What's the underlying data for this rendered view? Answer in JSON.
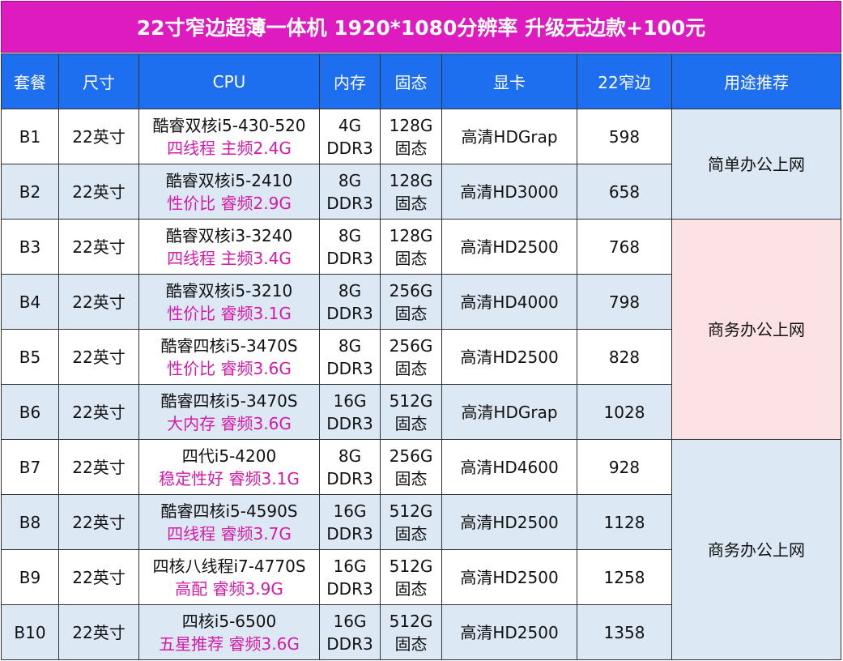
{
  "title": "22寸窄边超薄一体机  1920*1080分辨率 升级无边款+100元",
  "headers": [
    "套餐",
    "尺寸",
    "CPU",
    "内存",
    "固态",
    "显卡",
    "22窄边",
    "用途推荐"
  ],
  "rows": [
    {
      "pkg": "B1",
      "size": "22英寸",
      "cpu1": "酷睿双核i5-430-520",
      "cpu2": "四线程 主频2.4G",
      "mem1": "4G",
      "mem2": "DDR3",
      "ssd1": "128G",
      "ssd2": "固态",
      "gpu": "高清HDGrap",
      "price": "598"
    },
    {
      "pkg": "B2",
      "size": "22英寸",
      "cpu1": "酷睿双核i5-2410",
      "cpu2": "性价比 睿频2.9G",
      "mem1": "8G",
      "mem2": "DDR3",
      "ssd1": "128G",
      "ssd2": "固态",
      "gpu": "高清HD3000",
      "price": "658"
    },
    {
      "pkg": "B3",
      "size": "22英寸",
      "cpu1": "酷睿双核i3-3240",
      "cpu2": "四线程 主频3.4G",
      "mem1": "8G",
      "mem2": "DDR3",
      "ssd1": "128G",
      "ssd2": "固态",
      "gpu": "高清HD2500",
      "price": "768"
    },
    {
      "pkg": "B4",
      "size": "22英寸",
      "cpu1": "酷睿双核i5-3210",
      "cpu2": "性价比 睿频3.1G",
      "mem1": "8G",
      "mem2": "DDR3",
      "ssd1": "256G",
      "ssd2": "固态",
      "gpu": "高清HD4000",
      "price": "798"
    },
    {
      "pkg": "B5",
      "size": "22英寸",
      "cpu1": "酷睿四核i5-3470S",
      "cpu2": "性价比 睿频3.6G",
      "mem1": "8G",
      "mem2": "DDR3",
      "ssd1": "256G",
      "ssd2": "固态",
      "gpu": "高清HD2500",
      "price": "828"
    },
    {
      "pkg": "B6",
      "size": "22英寸",
      "cpu1": "酷睿四核i5-3470S",
      "cpu2": "大内存 睿频3.6G",
      "mem1": "16G",
      "mem2": "DDR3",
      "ssd1": "512G",
      "ssd2": "固态",
      "gpu": "高清HDGrap",
      "price": "1028"
    },
    {
      "pkg": "B7",
      "size": "22英寸",
      "cpu1": "四代i5-4200",
      "cpu2": "稳定性好 睿频3.1G",
      "mem1": "8G",
      "mem2": "DDR3",
      "ssd1": "256G",
      "ssd2": "固态",
      "gpu": "高清HD4600",
      "price": "928"
    },
    {
      "pkg": "B8",
      "size": "22英寸",
      "cpu1": "酷睿四核i5-4590S",
      "cpu2": "四线程 睿频3.7G",
      "mem1": "16G",
      "mem2": "DDR3",
      "ssd1": "512G",
      "ssd2": "固态",
      "gpu": "高清HD2500",
      "price": "1128"
    },
    {
      "pkg": "B9",
      "size": "22英寸",
      "cpu1": "四核八线程i7-4770S",
      "cpu2": "高配 睿频3.9G",
      "mem1": "16G",
      "mem2": "DDR3",
      "ssd1": "512G",
      "ssd2": "固态",
      "gpu": "高清HD2500",
      "price": "1258"
    },
    {
      "pkg": "B10",
      "size": "22英寸",
      "cpu1": "四核i5-6500",
      "cpu2": "五星推荐 睿频3.6G",
      "mem1": "16G",
      "mem2": "DDR3",
      "ssd1": "512G",
      "ssd2": "固态",
      "gpu": "高清HD2500",
      "price": "1358"
    }
  ],
  "usage": [
    "简单办公上网",
    "商务办公上网",
    "商务办公上网"
  ],
  "colors": {
    "title_bg": "#dd1bbf",
    "header_bg": "#1e6ef0",
    "row_alt_bg": "#dde8f5",
    "price_color": "#e016b8",
    "cpu_sub_color": "#d51aa9",
    "usage_pink_bg": "#fde2e5"
  }
}
